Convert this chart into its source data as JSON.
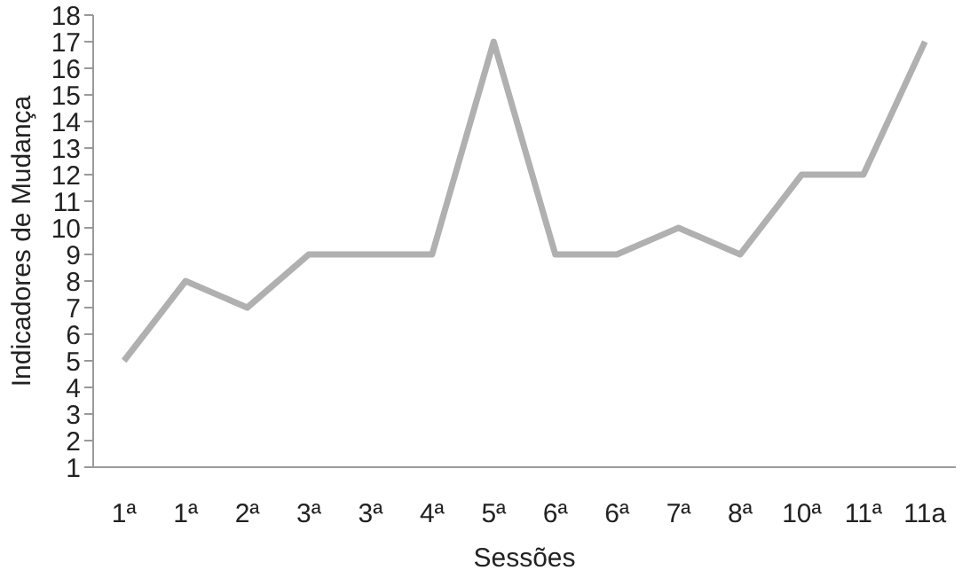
{
  "chart_data": {
    "type": "line",
    "xlabel": "Sessões",
    "ylabel": "Indicadores de Mudança",
    "categories": [
      "1ª",
      "1ª",
      "2ª",
      "3ª",
      "3ª",
      "4ª",
      "5ª",
      "6ª",
      "6ª",
      "7ª",
      "8ª",
      "10ª",
      "11ª",
      "11a"
    ],
    "series": [
      {
        "color": "#b0b0b0",
        "values": [
          5,
          8,
          7,
          9,
          9,
          9,
          17,
          9,
          9,
          10,
          9,
          12,
          12,
          17
        ]
      }
    ],
    "ylim": [
      1,
      18
    ],
    "yticks": [
      1,
      2,
      3,
      4,
      5,
      6,
      7,
      8,
      9,
      10,
      11,
      12,
      13,
      14,
      15,
      16,
      17,
      18
    ],
    "grid": false,
    "marker": "none",
    "line_style": "solid"
  }
}
